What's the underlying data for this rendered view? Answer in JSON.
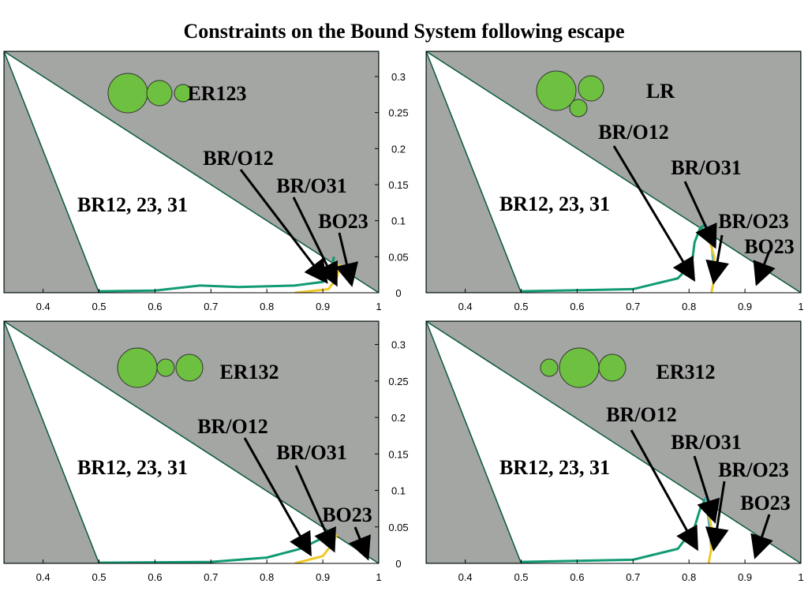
{
  "title": "Constraints on the Bound System following escape",
  "chart_data": [
    {
      "type": "line",
      "label": "ER123",
      "annotations": [
        "BR12, 23, 31",
        "BR/O12",
        "BR/O31",
        "BO23"
      ],
      "xlim": [
        0.33,
        1
      ],
      "ylim": [
        0,
        0.335
      ],
      "xticks": [
        0.4,
        0.5,
        0.6,
        0.7,
        0.8,
        0.9,
        1
      ],
      "yticks": [
        0,
        0.05,
        0.1,
        0.15,
        0.2,
        0.25,
        0.3
      ],
      "regions": {
        "color": "#a4a6a4",
        "shapes": [
          {
            "x": [
              0.33,
              1,
              1
            ],
            "y": [
              0.335,
              0.335,
              0
            ]
          },
          {
            "x": [
              0.33,
              0.5,
              0.33
            ],
            "y": [
              0.335,
              0,
              0
            ]
          }
        ]
      },
      "series": [
        {
          "color": "#129a74",
          "x": [
            0.5,
            0.6,
            0.68,
            0.75,
            0.85,
            0.9,
            0.915,
            0.92
          ],
          "values": [
            0.002,
            0.003,
            0.01,
            0.008,
            0.01,
            0.015,
            0.03,
            0.05
          ]
        },
        {
          "color": "#f0c828",
          "x": [
            0.85,
            0.91,
            0.925,
            0.93
          ],
          "values": [
            0,
            0.005,
            0.02,
            0.04
          ]
        }
      ]
    },
    {
      "type": "line",
      "label": "LR",
      "annotations": [
        "BR12, 23, 31",
        "BR/O12",
        "BR/O31",
        "BR/O23",
        "BO23"
      ],
      "xlim": [
        0.33,
        1
      ],
      "ylim": [
        0,
        0.335
      ],
      "xticks": [
        0.4,
        0.5,
        0.6,
        0.7,
        0.8,
        0.9,
        1
      ],
      "regions": {
        "color": "#a4a6a4",
        "shapes": [
          {
            "x": [
              0.33,
              1,
              1
            ],
            "y": [
              0.335,
              0.335,
              0
            ]
          },
          {
            "x": [
              0.33,
              0.5,
              0.33
            ],
            "y": [
              0.335,
              0,
              0
            ]
          }
        ]
      },
      "series": [
        {
          "color": "#129a74",
          "x": [
            0.5,
            0.7,
            0.78,
            0.805,
            0.81,
            0.82,
            0.83
          ],
          "values": [
            0.002,
            0.005,
            0.02,
            0.04,
            0.07,
            0.09,
            0.095
          ]
        },
        {
          "color": "#4ab0d0",
          "x": [
            0.83,
            0.84,
            0.845
          ],
          "values": [
            0.095,
            0.07,
            0.03
          ]
        },
        {
          "color": "#f0c828",
          "x": [
            0.83,
            0.845,
            0.845,
            0.84
          ],
          "values": [
            0.09,
            0.05,
            0.02,
            0
          ]
        }
      ]
    },
    {
      "type": "line",
      "label": "ER132",
      "annotations": [
        "BR12, 23, 31",
        "BR/O12",
        "BR/O31",
        "BO23"
      ],
      "xlim": [
        0.33,
        1
      ],
      "ylim": [
        0,
        0.332
      ],
      "xticks": [
        0.4,
        0.5,
        0.6,
        0.7,
        0.8,
        0.9,
        1
      ],
      "yticks": [
        0,
        0.05,
        0.1,
        0.15,
        0.2,
        0.25,
        0.3
      ],
      "regions": {
        "color": "#a4a6a4",
        "shapes": [
          {
            "x": [
              0.33,
              1,
              1
            ],
            "y": [
              0.332,
              0.332,
              0
            ]
          },
          {
            "x": [
              0.33,
              0.5,
              0.33
            ],
            "y": [
              0.332,
              0,
              0
            ]
          }
        ]
      },
      "series": [
        {
          "color": "#129a74",
          "x": [
            0.5,
            0.7,
            0.8,
            0.86,
            0.9,
            0.915
          ],
          "values": [
            0.001,
            0.002,
            0.008,
            0.02,
            0.035,
            0.04
          ]
        },
        {
          "color": "#f0c828",
          "x": [
            0.85,
            0.9,
            0.92,
            0.925
          ],
          "values": [
            0,
            0.01,
            0.03,
            0.04
          ]
        }
      ]
    },
    {
      "type": "line",
      "label": "ER312",
      "annotations": [
        "BR12, 23, 31",
        "BR/O12",
        "BR/O31",
        "BR/O23",
        "BO23"
      ],
      "xlim": [
        0.33,
        1
      ],
      "ylim": [
        0,
        0.332
      ],
      "xticks": [
        0.4,
        0.5,
        0.6,
        0.7,
        0.8,
        0.9,
        1
      ],
      "regions": {
        "color": "#a4a6a4",
        "shapes": [
          {
            "x": [
              0.33,
              1,
              1
            ],
            "y": [
              0.332,
              0.332,
              0
            ]
          },
          {
            "x": [
              0.33,
              0.5,
              0.33
            ],
            "y": [
              0.332,
              0,
              0
            ]
          }
        ]
      },
      "series": [
        {
          "color": "#129a74",
          "x": [
            0.5,
            0.7,
            0.78,
            0.81,
            0.82,
            0.83
          ],
          "values": [
            0.002,
            0.005,
            0.02,
            0.05,
            0.075,
            0.09
          ]
        },
        {
          "color": "#4ab0d0",
          "x": [
            0.83,
            0.835,
            0.84
          ],
          "values": [
            0.09,
            0.06,
            0.02
          ]
        },
        {
          "color": "#f0c828",
          "x": [
            0.83,
            0.84,
            0.84,
            0.835
          ],
          "values": [
            0.085,
            0.05,
            0.02,
            0
          ]
        }
      ]
    }
  ]
}
